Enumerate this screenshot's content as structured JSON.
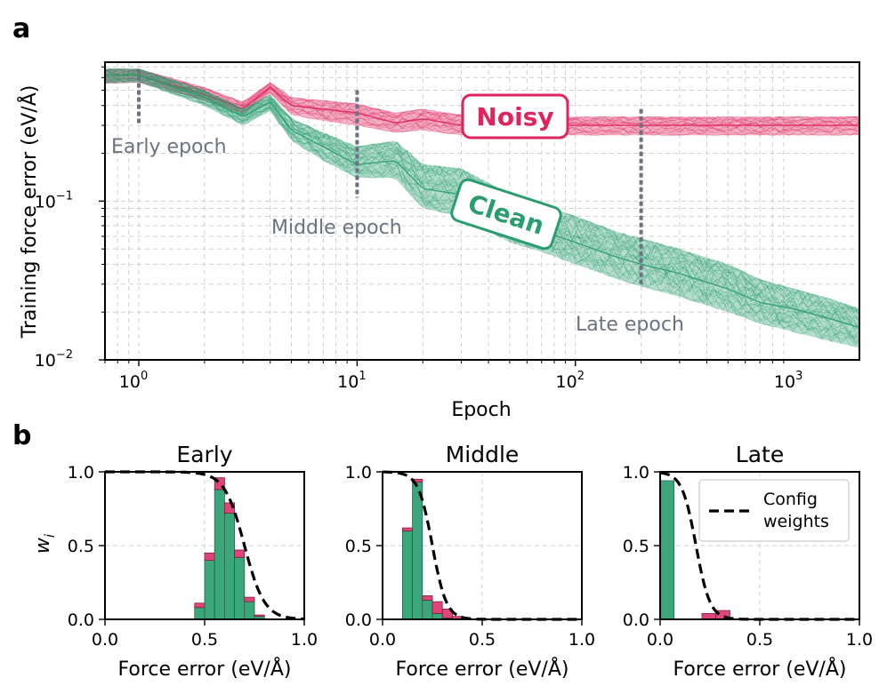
{
  "figure": {
    "panel_a_letter": "a",
    "panel_b_letter": "b"
  },
  "chart_data": [
    {
      "type": "line",
      "panel": "a",
      "xlabel": "Epoch",
      "ylabel": "Training force error (eV/Å)",
      "xscale": "log",
      "yscale": "log",
      "xlim": [
        0.7,
        2000
      ],
      "ylim": [
        0.01,
        0.75
      ],
      "grid": true,
      "x_ticks": [
        {
          "value": 1,
          "base": "10",
          "exp": "0"
        },
        {
          "value": 10,
          "base": "10",
          "exp": "1"
        },
        {
          "value": 100,
          "base": "10",
          "exp": "2"
        },
        {
          "value": 1000,
          "base": "10",
          "exp": "3"
        }
      ],
      "y_ticks": [
        {
          "value": 0.1,
          "base": "10",
          "exp": "−1"
        },
        {
          "value": 0.01,
          "base": "10",
          "exp": "−2"
        }
      ],
      "series": [
        {
          "name": "Noisy",
          "color": "#e0245e",
          "x": [
            0.7,
            1,
            2,
            3,
            4,
            5,
            7,
            10,
            15,
            20,
            30,
            50,
            70,
            100,
            200,
            500,
            1000,
            2000
          ],
          "y_center": [
            0.62,
            0.62,
            0.47,
            0.38,
            0.52,
            0.4,
            0.38,
            0.36,
            0.31,
            0.33,
            0.3,
            0.3,
            0.3,
            0.3,
            0.3,
            0.3,
            0.3,
            0.3
          ],
          "y_low": [
            0.55,
            0.56,
            0.43,
            0.35,
            0.48,
            0.35,
            0.32,
            0.3,
            0.27,
            0.28,
            0.26,
            0.26,
            0.26,
            0.26,
            0.26,
            0.26,
            0.26,
            0.26
          ],
          "y_high": [
            0.68,
            0.68,
            0.52,
            0.42,
            0.56,
            0.45,
            0.43,
            0.41,
            0.36,
            0.38,
            0.35,
            0.34,
            0.34,
            0.34,
            0.34,
            0.34,
            0.34,
            0.34
          ]
        },
        {
          "name": "Clean",
          "color": "#2a9d6f",
          "x": [
            0.7,
            1,
            2,
            3,
            4,
            5,
            7,
            10,
            15,
            20,
            30,
            50,
            70,
            100,
            150,
            200,
            300,
            500,
            700,
            1000,
            1500,
            2000
          ],
          "y_center": [
            0.62,
            0.62,
            0.45,
            0.34,
            0.42,
            0.28,
            0.22,
            0.17,
            0.18,
            0.12,
            0.11,
            0.075,
            0.065,
            0.055,
            0.045,
            0.04,
            0.035,
            0.028,
            0.023,
            0.021,
            0.018,
            0.016
          ],
          "y_low": [
            0.55,
            0.56,
            0.4,
            0.3,
            0.37,
            0.24,
            0.18,
            0.14,
            0.14,
            0.09,
            0.08,
            0.055,
            0.048,
            0.04,
            0.033,
            0.029,
            0.025,
            0.02,
            0.017,
            0.015,
            0.013,
            0.012
          ],
          "y_high": [
            0.68,
            0.68,
            0.5,
            0.38,
            0.47,
            0.33,
            0.27,
            0.22,
            0.24,
            0.17,
            0.16,
            0.11,
            0.095,
            0.08,
            0.065,
            0.058,
            0.05,
            0.04,
            0.032,
            0.028,
            0.024,
            0.021
          ]
        }
      ],
      "annotations": {
        "noisy_badge": "Noisy",
        "clean_badge": "Clean",
        "epoch_markers": [
          {
            "name": "Early epoch",
            "x": 1,
            "y_from": 0.31,
            "y_to": 0.68
          },
          {
            "name": "Middle epoch",
            "x": 10,
            "y_from": 0.105,
            "y_to": 0.5
          },
          {
            "name": "Late epoch",
            "x": 200,
            "y_from": 0.029,
            "y_to": 0.38
          }
        ]
      }
    },
    {
      "type": "bar",
      "panel": "b",
      "title": "Early",
      "xlabel": "Force error (eV/Å)",
      "ylabel": "w_i",
      "xlim": [
        0,
        1
      ],
      "ylim": [
        0,
        1
      ],
      "x_tick_labels": [
        "0.0",
        "0.5",
        "1.0"
      ],
      "y_tick_labels": [
        "0.0",
        "0.5",
        "1.0"
      ],
      "bin_width": 0.05,
      "bin_starts": [
        0.45,
        0.5,
        0.55,
        0.6,
        0.65,
        0.7,
        0.75
      ],
      "clean": [
        0.08,
        0.4,
        0.88,
        0.72,
        0.42,
        0.12,
        0.02
      ],
      "noisy_extra": [
        0.03,
        0.05,
        0.08,
        0.07,
        0.05,
        0.03,
        0.01
      ],
      "weight_curve": {
        "type": "sigmoid",
        "center": 0.7,
        "width": 0.05
      }
    },
    {
      "type": "bar",
      "panel": "b",
      "title": "Middle",
      "xlabel": "Force error (eV/Å)",
      "xlim": [
        0,
        1
      ],
      "ylim": [
        0,
        1
      ],
      "x_tick_labels": [
        "0.0",
        "0.5",
        "1.0"
      ],
      "y_tick_labels": [
        "0.0",
        "0.5",
        "1.0"
      ],
      "bin_width": 0.05,
      "bin_starts": [
        0.1,
        0.15,
        0.2,
        0.25,
        0.3,
        0.35
      ],
      "clean": [
        0.6,
        0.93,
        0.13,
        0.04,
        0.01,
        0.0
      ],
      "noisy_extra": [
        0.02,
        0.02,
        0.03,
        0.08,
        0.06,
        0.02
      ],
      "weight_curve": {
        "type": "sigmoid",
        "center": 0.25,
        "width": 0.035
      }
    },
    {
      "type": "bar",
      "panel": "b",
      "title": "Late",
      "xlabel": "Force error (eV/Å)",
      "xlim": [
        0,
        1
      ],
      "ylim": [
        0,
        1
      ],
      "x_tick_labels": [
        "0.0",
        "0.5",
        "1.0"
      ],
      "y_tick_labels": [
        "0.0",
        "0.5",
        "1.0"
      ],
      "bin_width": 0.07,
      "bin_starts": [
        0.0,
        0.07,
        0.14,
        0.21,
        0.28
      ],
      "clean": [
        0.94,
        0.0,
        0.0,
        0.0,
        0.0
      ],
      "noisy_extra": [
        0.0,
        0.0,
        0.0,
        0.04,
        0.06
      ],
      "weight_curve": {
        "type": "sigmoid",
        "center": 0.18,
        "width": 0.035
      },
      "legend": {
        "label_line1": "Config",
        "label_line2": "weights",
        "position": "top-right"
      }
    }
  ]
}
